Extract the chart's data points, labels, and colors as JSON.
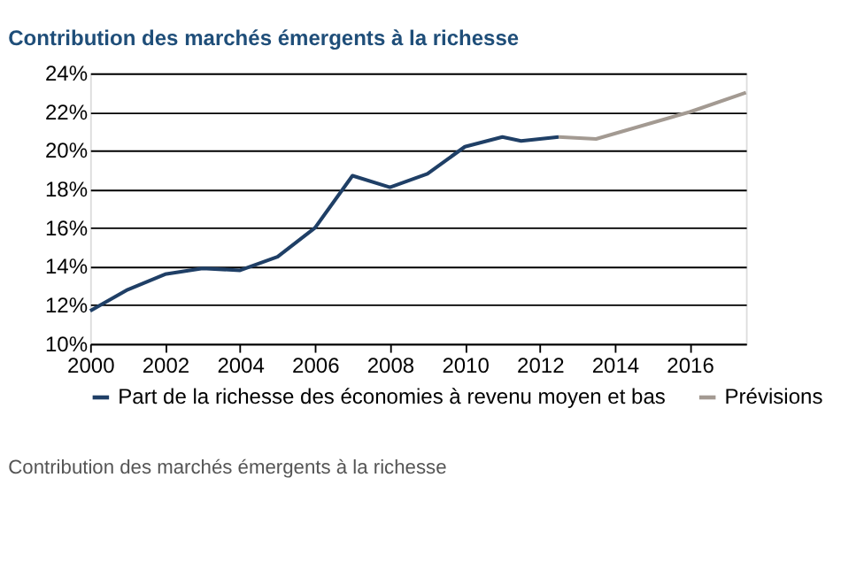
{
  "chart_data": {
    "type": "line",
    "title": "Contribution des marchés émergents à la richesse",
    "series": [
      {
        "name": "Part de la richesse des économies à revenu moyen et bas",
        "color": "#1f3f66",
        "x": [
          2000,
          2001,
          2002,
          2003,
          2004,
          2005,
          2006,
          2007,
          2008,
          2009,
          2010,
          2011,
          2011.5,
          2012.5
        ],
        "values": [
          11.7,
          12.8,
          13.6,
          13.9,
          13.8,
          14.5,
          16.0,
          18.7,
          18.1,
          18.8,
          20.2,
          20.7,
          20.5,
          20.7
        ]
      },
      {
        "name": "Prévisions",
        "color": "#a39a92",
        "x": [
          2012.5,
          2013.5,
          2016,
          2017.5
        ],
        "values": [
          20.7,
          20.6,
          22.0,
          23.0
        ]
      }
    ],
    "xlim": [
      2000,
      2017.5
    ],
    "xticks": [
      2000,
      2002,
      2004,
      2006,
      2008,
      2010,
      2012,
      2014,
      2016
    ],
    "ylim": [
      10,
      24
    ],
    "yticks": [
      {
        "value": 10,
        "label": "10%"
      },
      {
        "value": 12,
        "label": "12%"
      },
      {
        "value": 14,
        "label": "14%"
      },
      {
        "value": 16,
        "label": "16%"
      },
      {
        "value": 18,
        "label": "18%"
      },
      {
        "value": 20,
        "label": "20%"
      },
      {
        "value": 22,
        "label": "22%"
      },
      {
        "value": 24,
        "label": "24%"
      }
    ],
    "grid": "y",
    "legend": "bottom",
    "marker": "none",
    "line_style": "solid",
    "annotations": [
      "Contribution des marchés émergents à la richesse"
    ]
  }
}
